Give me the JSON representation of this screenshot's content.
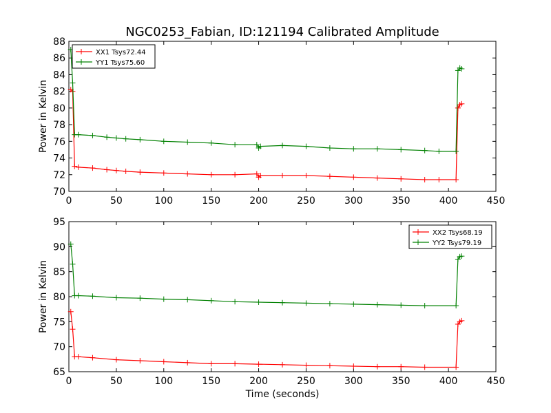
{
  "figure": {
    "title": "NGC0253_Fabian, ID:121194 Calibrated Amplitude"
  },
  "chart_data": [
    {
      "type": "line",
      "title": "NGC0253_Fabian, ID:121194 Calibrated Amplitude",
      "xlabel": "",
      "ylabel": "Power in Kelvin",
      "xlim": [
        0,
        450
      ],
      "ylim": [
        70,
        88
      ],
      "xticks": [
        0,
        50,
        100,
        150,
        200,
        250,
        300,
        350,
        400,
        450
      ],
      "yticks": [
        70,
        72,
        74,
        76,
        78,
        80,
        82,
        84,
        86,
        88
      ],
      "legend_position": "top-left",
      "grid": false,
      "series": [
        {
          "name": "XX1 Tsys72.44",
          "color": "#ff0000",
          "marker": "plus",
          "x": [
            2,
            4,
            6,
            10,
            25,
            40,
            50,
            60,
            75,
            100,
            125,
            150,
            175,
            198,
            200,
            202,
            225,
            250,
            275,
            300,
            325,
            350,
            375,
            390,
            408,
            410,
            412,
            414
          ],
          "values": [
            82.2,
            82.0,
            73.0,
            72.9,
            72.8,
            72.6,
            72.5,
            72.4,
            72.3,
            72.2,
            72.1,
            72.0,
            72.0,
            72.1,
            71.7,
            71.9,
            71.9,
            71.9,
            71.8,
            71.7,
            71.6,
            71.5,
            71.4,
            71.4,
            71.4,
            80.0,
            80.4,
            80.5
          ]
        },
        {
          "name": "YY1 Tsys75.60",
          "color": "#008000",
          "marker": "plus",
          "x": [
            2,
            4,
            6,
            10,
            25,
            40,
            50,
            60,
            75,
            100,
            125,
            150,
            175,
            198,
            200,
            202,
            225,
            250,
            275,
            300,
            325,
            350,
            375,
            390,
            408,
            410,
            412,
            414
          ],
          "values": [
            87.0,
            83.0,
            76.8,
            76.8,
            76.7,
            76.5,
            76.4,
            76.3,
            76.2,
            76.0,
            75.9,
            75.8,
            75.6,
            75.6,
            75.2,
            75.4,
            75.5,
            75.4,
            75.2,
            75.1,
            75.1,
            75.0,
            74.9,
            74.8,
            74.8,
            84.5,
            84.8,
            84.7
          ]
        }
      ]
    },
    {
      "type": "line",
      "xlabel": "Time (seconds)",
      "ylabel": "Power in Kelvin",
      "xlim": [
        0,
        450
      ],
      "ylim": [
        65,
        95
      ],
      "xticks": [
        0,
        50,
        100,
        150,
        200,
        250,
        300,
        350,
        400,
        450
      ],
      "yticks": [
        65,
        70,
        75,
        80,
        85,
        90,
        95
      ],
      "legend_position": "top-right",
      "grid": false,
      "series": [
        {
          "name": "XX2 Tsys68.19",
          "color": "#ff0000",
          "marker": "plus",
          "x": [
            2,
            4,
            6,
            10,
            25,
            50,
            75,
            100,
            125,
            150,
            175,
            200,
            225,
            250,
            275,
            300,
            325,
            350,
            375,
            408,
            410,
            412,
            414
          ],
          "values": [
            77.0,
            73.5,
            68.0,
            68.0,
            67.8,
            67.4,
            67.2,
            67.0,
            66.8,
            66.6,
            66.6,
            66.5,
            66.4,
            66.3,
            66.2,
            66.1,
            66.0,
            66.0,
            65.9,
            65.9,
            74.5,
            75.0,
            75.2
          ]
        },
        {
          "name": "YY2 Tsys79.19",
          "color": "#008000",
          "marker": "plus",
          "x": [
            2,
            4,
            6,
            10,
            25,
            50,
            75,
            100,
            125,
            150,
            175,
            200,
            225,
            250,
            275,
            300,
            325,
            350,
            375,
            408,
            410,
            412,
            414
          ],
          "values": [
            90.5,
            86.5,
            80.2,
            80.2,
            80.1,
            79.8,
            79.7,
            79.5,
            79.4,
            79.2,
            79.0,
            78.9,
            78.8,
            78.7,
            78.6,
            78.5,
            78.4,
            78.3,
            78.2,
            78.2,
            87.5,
            88.0,
            88.1
          ]
        }
      ]
    }
  ]
}
